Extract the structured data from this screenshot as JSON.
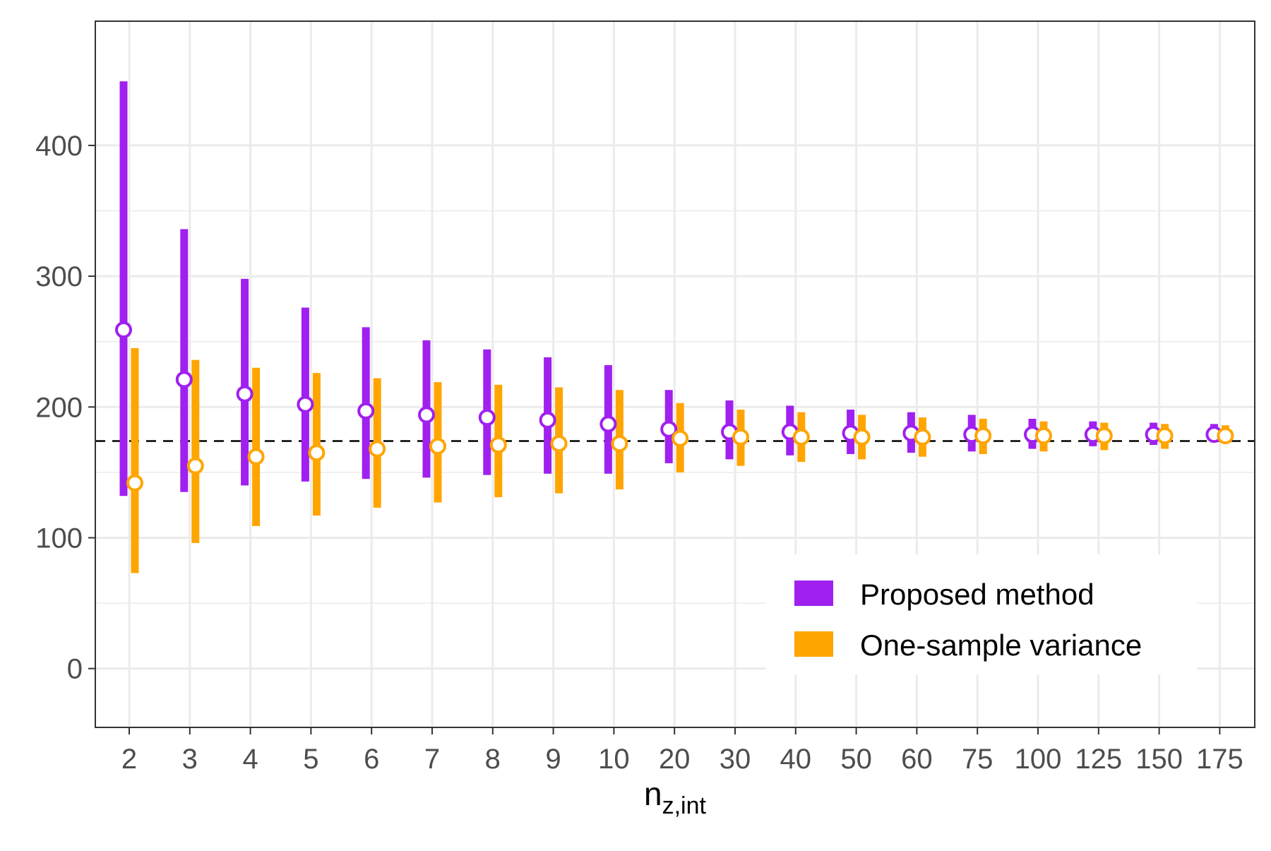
{
  "chart_data": {
    "type": "errorbar",
    "title": "",
    "xlabel": "n",
    "xlabel_subscript": "z,int",
    "ylabel": "",
    "ylim": [
      -45,
      495
    ],
    "yticks": [
      0,
      100,
      200,
      300,
      400
    ],
    "y_tick_labels": [
      "0",
      "100",
      "200",
      "300",
      "400"
    ],
    "reference_line": 174,
    "grid": true,
    "legend_position": "bottom-right",
    "categories": [
      "2",
      "3",
      "4",
      "5",
      "6",
      "7",
      "8",
      "9",
      "10",
      "20",
      "30",
      "40",
      "50",
      "60",
      "75",
      "100",
      "125",
      "150",
      "175"
    ],
    "series": [
      {
        "name": "Proposed method",
        "color": "#A020F0",
        "estimate": [
          259,
          221,
          210,
          202,
          197,
          194,
          192,
          190,
          187,
          183,
          181,
          181,
          180,
          180,
          179,
          179,
          179,
          179,
          179
        ],
        "lower": [
          132,
          135,
          140,
          143,
          145,
          146,
          148,
          149,
          149,
          157,
          160,
          163,
          164,
          165,
          166,
          168,
          170,
          171,
          174
        ],
        "upper": [
          449,
          336,
          298,
          276,
          261,
          251,
          244,
          238,
          232,
          213,
          205,
          201,
          198,
          196,
          194,
          191,
          189,
          188,
          187
        ]
      },
      {
        "name": "One-sample variance",
        "color": "#FFA500",
        "estimate": [
          142,
          155,
          162,
          165,
          168,
          170,
          171,
          172,
          172,
          176,
          177,
          177,
          177,
          177,
          178,
          178,
          178,
          178,
          178
        ],
        "lower": [
          73,
          96,
          109,
          117,
          123,
          127,
          131,
          134,
          137,
          150,
          155,
          158,
          160,
          162,
          164,
          166,
          167,
          168,
          172
        ],
        "upper": [
          245,
          236,
          230,
          226,
          222,
          219,
          217,
          215,
          213,
          203,
          198,
          196,
          194,
          192,
          191,
          189,
          188,
          187,
          186
        ]
      }
    ]
  }
}
